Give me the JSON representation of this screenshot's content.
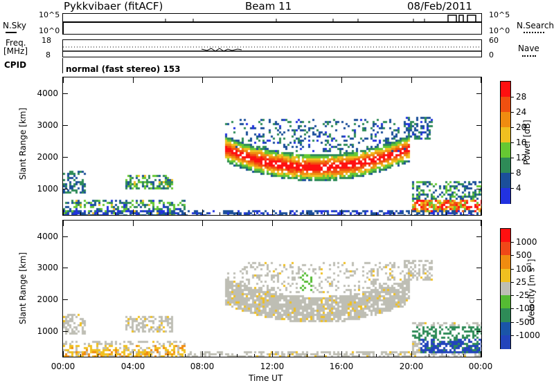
{
  "header": {
    "station": "Pykkvibaer (fitACF)",
    "beam": "Beam 11",
    "date": "08/Feb/2011"
  },
  "status_panels": {
    "nsky_label": "N.Sky",
    "nsky_ticks": [
      "10^5",
      "10^0"
    ],
    "nsearch_label": "N.Search",
    "nsearch_ticks": [
      "10^5",
      "10^0"
    ],
    "freq_label_1": "Freq.",
    "freq_label_2": "[MHz]",
    "freq_ticks": [
      "18",
      "8"
    ],
    "nave_label": "Nave",
    "nave_ticks": [
      "60",
      "0"
    ],
    "cpid_label": "CPID",
    "cpid_value": "normal (fast stereo) 153"
  },
  "colors": {
    "power": [
      "#2232e0",
      "#1b4f9a",
      "#2e8b57",
      "#66c832",
      "#f0c020",
      "#f08c10",
      "#f05010",
      "#ff1010"
    ],
    "velocity": [
      "#2244bb",
      "#1a55a8",
      "#2e8b57",
      "#55bb33",
      "#bebeb4",
      "#f0c020",
      "#f08c10",
      "#f04818",
      "#ff1010"
    ]
  },
  "chart_data": [
    {
      "type": "heatmap",
      "title": "Power",
      "xlabel": "Time UT",
      "ylabel": "Slant Range [km]",
      "x_ticks": [
        "00:00",
        "04:00",
        "08:00",
        "12:00",
        "16:00",
        "20:00",
        "00:00"
      ],
      "xlim": [
        0,
        24
      ],
      "ylim": [
        180,
        4500
      ],
      "y_ticks": [
        1000,
        2000,
        3000,
        4000
      ],
      "colorbar_label": "Power [dB]",
      "colorbar_ticks": [
        "28",
        "24",
        "20",
        "16",
        "12",
        "8",
        "4"
      ],
      "colorbar_range": [
        0,
        32
      ]
    },
    {
      "type": "heatmap",
      "title": "Velocity",
      "xlabel": "Time UT",
      "ylabel": "Slant Range [km]",
      "x_ticks": [
        "00:00",
        "04:00",
        "08:00",
        "12:00",
        "16:00",
        "20:00",
        "00:00"
      ],
      "xlim": [
        0,
        24
      ],
      "ylim": [
        180,
        4500
      ],
      "y_ticks": [
        1000,
        2000,
        3000,
        4000
      ],
      "colorbar_label": "Velocity [m s",
      "colorbar_label_sup": "-1",
      "colorbar_label_end": "]",
      "colorbar_ticks": [
        "1000",
        "500",
        "100",
        "25",
        "-25",
        "-100",
        "-500",
        "-1000"
      ]
    }
  ]
}
